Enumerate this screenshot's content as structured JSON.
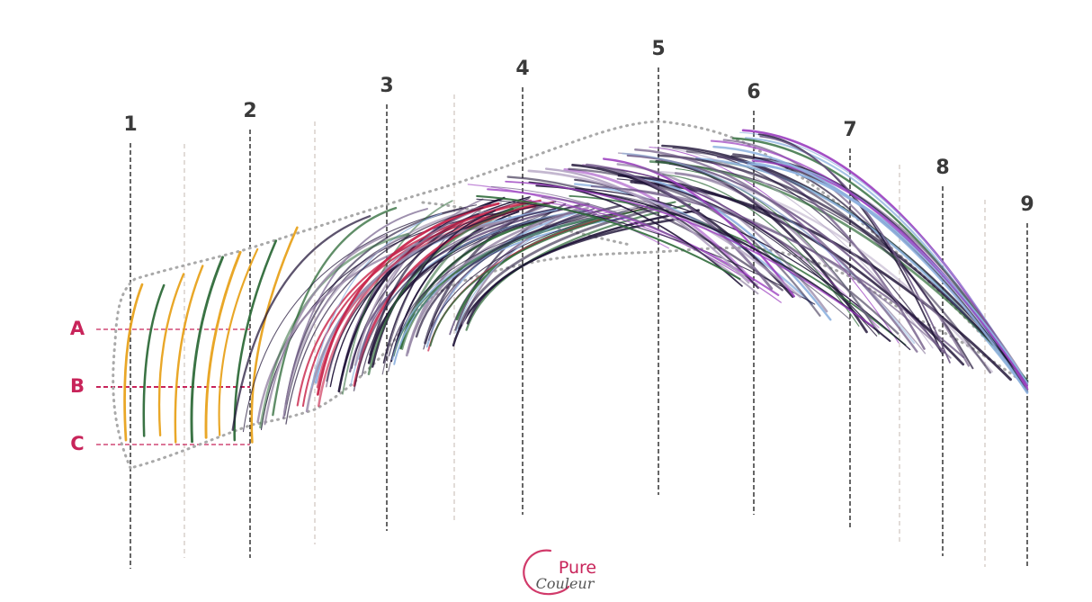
{
  "markers": [
    "1",
    "2",
    "3",
    "4",
    "5",
    "6",
    "7",
    "8",
    "9"
  ],
  "rows": [
    "A",
    "B",
    "C"
  ],
  "logo": {
    "word": "Pure",
    "script": "Couleur"
  }
}
